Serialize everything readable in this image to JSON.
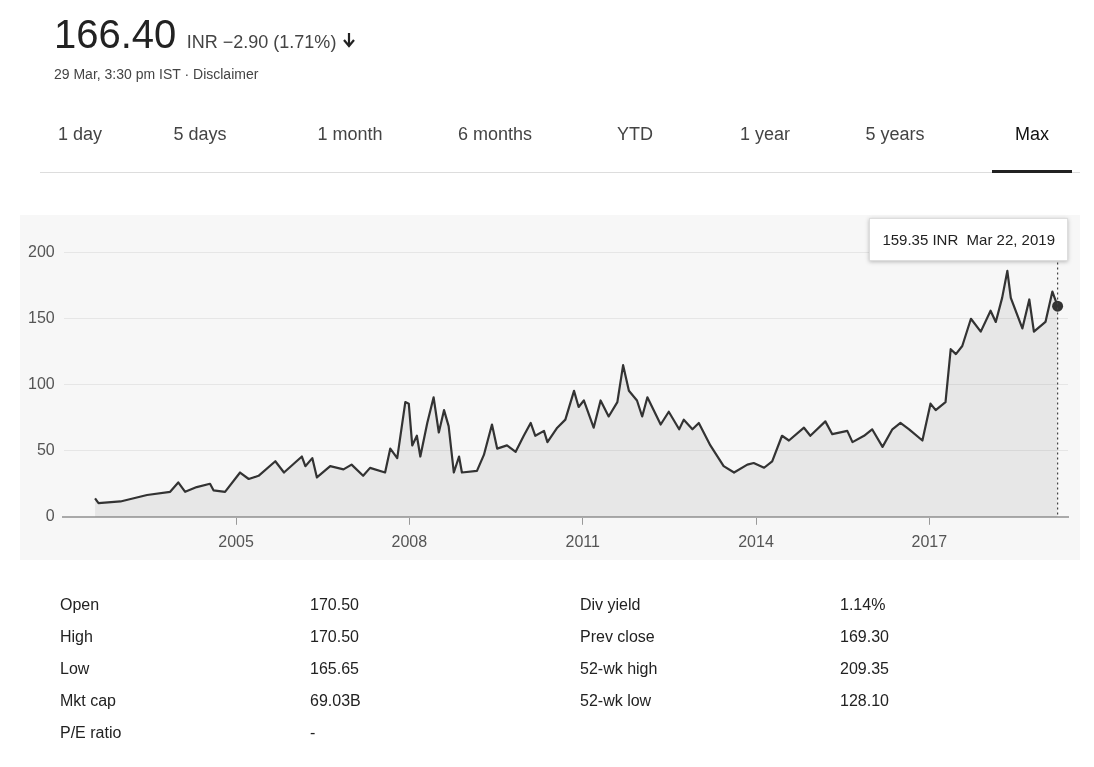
{
  "chart_data": {
    "type": "area",
    "title": "166.40 INR −2.90 (1.71%)",
    "subtitle": "29 Mar, 3:30 pm IST · Disclaimer",
    "x": [
      2002.56,
      2002.62,
      2003.0,
      2003.46,
      2003.86,
      2004.0,
      2004.12,
      2004.32,
      2004.55,
      2004.61,
      2004.81,
      2005.07,
      2005.22,
      2005.39,
      2005.68,
      2005.83,
      2006.14,
      2006.2,
      2006.32,
      2006.4,
      2006.63,
      2006.86,
      2007.0,
      2007.2,
      2007.32,
      2007.58,
      2007.67,
      2007.79,
      2007.93,
      2007.99,
      2008.05,
      2008.13,
      2008.19,
      2008.31,
      2008.42,
      2008.51,
      2008.6,
      2008.68,
      2008.77,
      2008.86,
      2008.91,
      2009.17,
      2009.29,
      2009.43,
      2009.52,
      2009.69,
      2009.84,
      2009.98,
      2010.1,
      2010.18,
      2010.33,
      2010.39,
      2010.56,
      2010.7,
      2010.85,
      2010.93,
      2011.02,
      2011.19,
      2011.31,
      2011.45,
      2011.6,
      2011.7,
      2011.8,
      2011.94,
      2012.03,
      2012.12,
      2012.35,
      2012.49,
      2012.67,
      2012.75,
      2012.9,
      2013.01,
      2013.21,
      2013.44,
      2013.62,
      2013.85,
      2013.96,
      2014.14,
      2014.28,
      2014.45,
      2014.57,
      2014.83,
      2014.94,
      2015.2,
      2015.32,
      2015.58,
      2015.67,
      2015.87,
      2016.01,
      2016.19,
      2016.36,
      2016.5,
      2016.65,
      2016.88,
      2017.02,
      2017.11,
      2017.28,
      2017.37,
      2017.46,
      2017.57,
      2017.72,
      2017.89,
      2018.06,
      2018.15,
      2018.26,
      2018.35,
      2018.41,
      2018.61,
      2018.73,
      2018.81,
      2019.01,
      2019.13,
      2019.22
    ],
    "series": [
      {
        "color": "#333333",
        "values": [
          14,
          10.4,
          11.6,
          16.5,
          18.9,
          26,
          18.9,
          22.5,
          25,
          20,
          18.9,
          33.5,
          28.6,
          31,
          42,
          33.5,
          45.6,
          38.3,
          44.4,
          29.8,
          38.3,
          35.9,
          39.5,
          31,
          37,
          33.5,
          51.6,
          44.4,
          86.8,
          85.6,
          54,
          61.3,
          45.6,
          71,
          90.4,
          63.8,
          80.7,
          68.6,
          33.5,
          45.6,
          33.5,
          34.7,
          46.8,
          69.8,
          51.6,
          54,
          49.2,
          61.3,
          71,
          61.3,
          65,
          56.5,
          67.4,
          73.5,
          95.3,
          83.1,
          88,
          67.4,
          88,
          75.9,
          86.8,
          114.7,
          95.3,
          88,
          75.9,
          90.4,
          69.8,
          79.5,
          66.2,
          73.5,
          66.2,
          71,
          54,
          38.3,
          33.5,
          39.5,
          40.7,
          37.1,
          42,
          61.3,
          57.7,
          67.4,
          61.3,
          72.2,
          62.5,
          65,
          56.5,
          61.3,
          66.2,
          52.9,
          66.2,
          71,
          66.2,
          57.7,
          85.6,
          80.7,
          86.8,
          126.8,
          123.1,
          129.2,
          149.8,
          140.1,
          155.9,
          147.4,
          165.6,
          186,
          165.6,
          142.5,
          164.4,
          140.1,
          147.4,
          170.4,
          159.35
        ]
      }
    ],
    "xlim": [
      2002,
      2019.4
    ],
    "xticks": [
      2005,
      2008,
      2011,
      2014,
      2017
    ],
    "ylim": [
      0,
      215
    ],
    "yticks": [
      0,
      50,
      100,
      150,
      200
    ],
    "grid": "y",
    "legend": false,
    "ref_lines": [
      {
        "axis": "x",
        "value": 2019.22,
        "line_style": "dotted"
      }
    ],
    "annotations": [
      "159.35 INR  Mar 22, 2019",
      "1 day",
      "5 days",
      "1 month",
      "6 months",
      "YTD",
      "1 year",
      "5 years",
      "Max",
      "Open",
      "170.50",
      "Div yield",
      "1.14%",
      "High",
      "170.50",
      "Prev close",
      "169.30",
      "Low",
      "165.65",
      "52-wk high",
      "209.35",
      "Mkt cap",
      "69.03B",
      "52-wk low",
      "128.10",
      "P/E ratio",
      "-"
    ]
  }
}
